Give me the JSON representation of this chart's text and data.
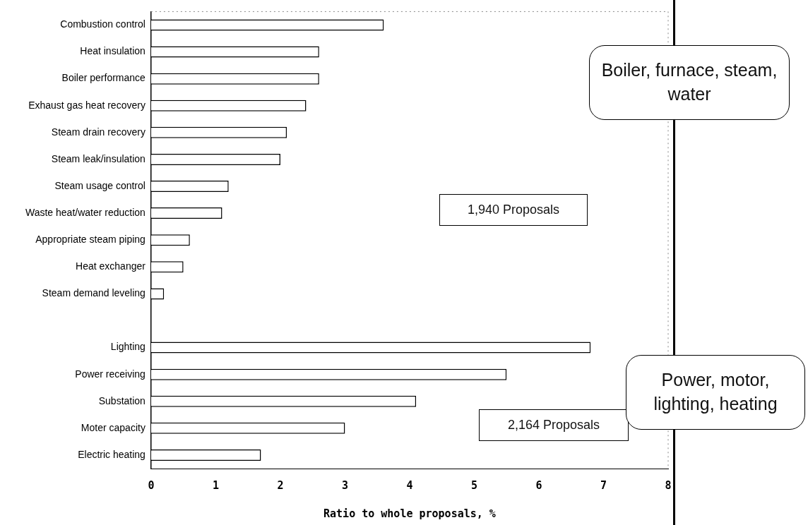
{
  "chart_data": {
    "type": "bar",
    "orientation": "horizontal",
    "xlabel": "Ratio to whole proposals, %",
    "categories": [
      "Combustion control",
      "Heat insulation",
      "Boiler performance",
      "Exhaust gas heat recovery",
      "Steam drain recovery",
      "Steam leak/insulation",
      "Steam usage control",
      "Waste heat/water reduction",
      "Appropriate steam piping",
      "Heat exchanger",
      "Steam demand leveling",
      null,
      "Lighting",
      "Power receiving",
      "Substation",
      "Moter capacity",
      "Electric heating"
    ],
    "values": [
      3.6,
      2.6,
      2.6,
      2.4,
      2.1,
      2.0,
      1.2,
      1.1,
      0.6,
      0.5,
      0.2,
      null,
      6.8,
      5.5,
      4.1,
      3.0,
      1.7
    ],
    "color": "#ffffff",
    "xlim": [
      0,
      8
    ],
    "xticks": [
      0,
      1,
      2,
      3,
      4,
      5,
      6,
      7,
      8
    ],
    "grid": false,
    "legend": false,
    "annotations": [
      "1,940 Proposals",
      "2,164 Proposals",
      "Boiler, furnace, steam, water",
      "Power, motor, lighting, heating"
    ]
  }
}
